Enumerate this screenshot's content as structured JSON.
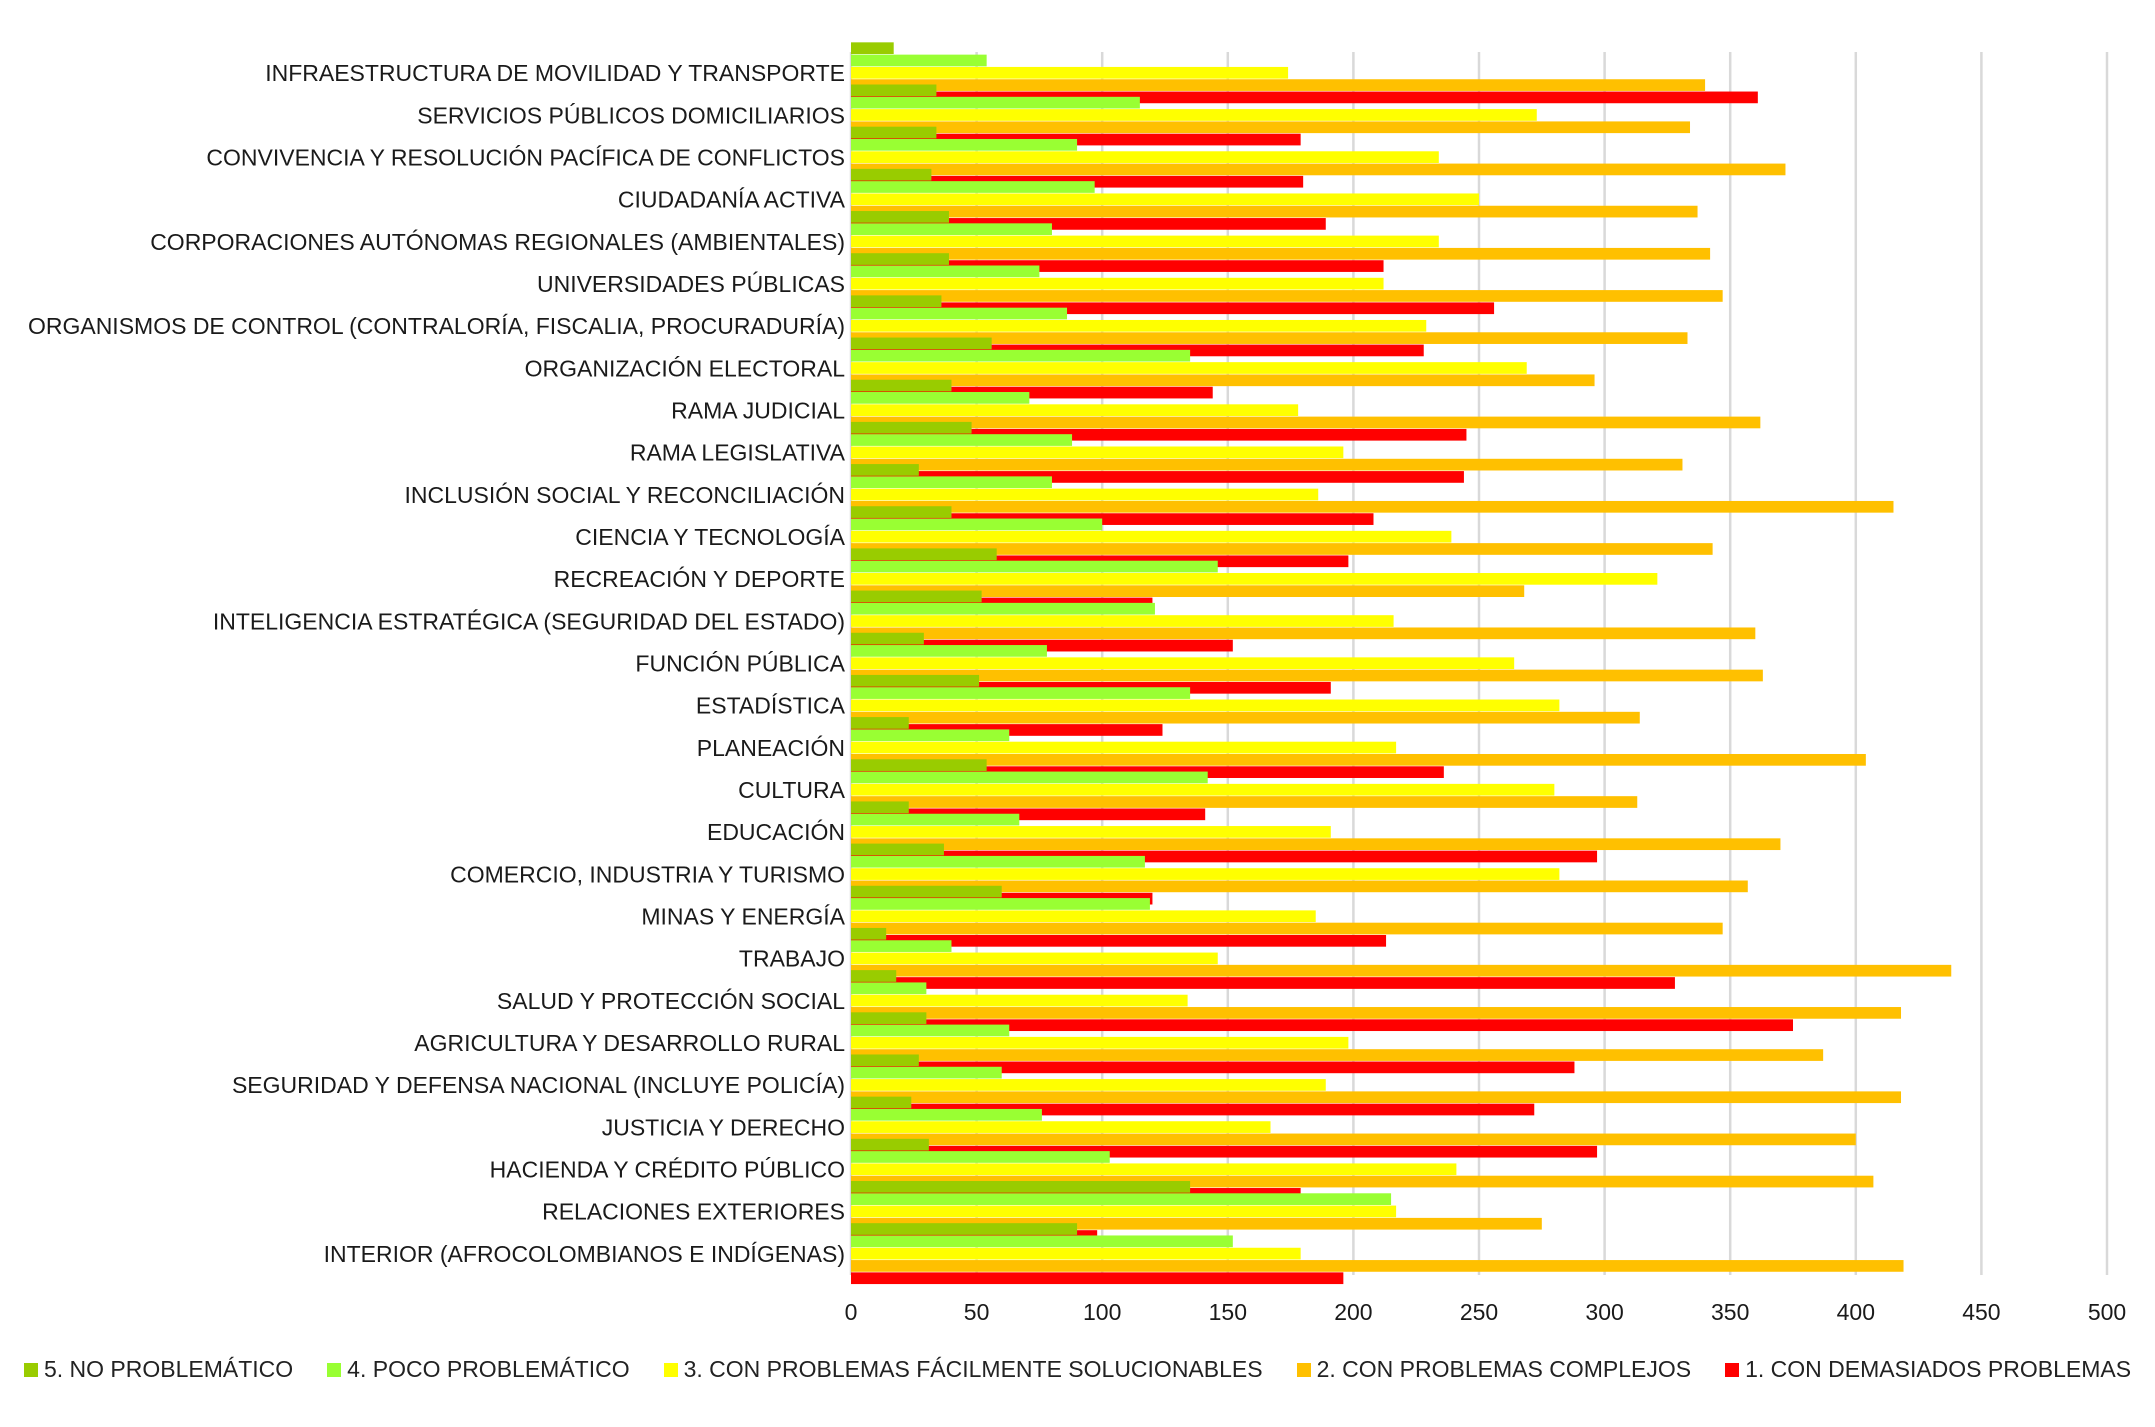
{
  "chart_data": {
    "type": "bar",
    "orientation": "horizontal",
    "title": "",
    "xlabel": "",
    "ylabel": "",
    "xlim": [
      0,
      500
    ],
    "x_ticks": [
      0,
      50,
      100,
      150,
      200,
      250,
      300,
      350,
      400,
      450,
      500
    ],
    "grid": true,
    "legend_position": "bottom",
    "categories": [
      "INFRAESTRUCTURA DE MOVILIDAD Y TRANSPORTE",
      "SERVICIOS PÚBLICOS DOMICILIARIOS",
      "CONVIVENCIA Y RESOLUCIÓN PACÍFICA DE CONFLICTOS",
      "CIUDADANÍA ACTIVA",
      "CORPORACIONES AUTÓNOMAS REGIONALES (AMBIENTALES)",
      "UNIVERSIDADES PÚBLICAS",
      "ORGANISMOS DE CONTROL (CONTRALORÍA, FISCALIA, PROCURADURÍA)",
      "ORGANIZACIÓN ELECTORAL",
      "RAMA JUDICIAL",
      "RAMA LEGISLATIVA",
      "INCLUSIÓN SOCIAL Y RECONCILIACIÓN",
      "CIENCIA Y TECNOLOGÍA",
      "RECREACIÓN Y DEPORTE",
      "INTELIGENCIA ESTRATÉGICA (SEGURIDAD DEL ESTADO)",
      "FUNCIÓN PÚBLICA",
      "ESTADÍSTICA",
      "PLANEACIÓN",
      "CULTURA",
      "EDUCACIÓN",
      "COMERCIO, INDUSTRIA Y TURISMO",
      "MINAS Y ENERGÍA",
      "TRABAJO",
      "SALUD Y PROTECCIÓN SOCIAL",
      "AGRICULTURA Y DESARROLLO RURAL",
      "SEGURIDAD Y DEFENSA NACIONAL (INCLUYE POLICÍA)",
      "JUSTICIA Y DERECHO",
      "HACIENDA Y CRÉDITO PÚBLICO",
      "RELACIONES EXTERIORES",
      "INTERIOR (AFROCOLOMBIANOS E INDÍGENAS)"
    ],
    "series": [
      {
        "name": "5. NO PROBLEMÁTICO",
        "color": "#99CC00",
        "values": [
          17,
          34,
          34,
          32,
          39,
          39,
          36,
          56,
          40,
          48,
          27,
          40,
          58,
          52,
          29,
          51,
          23,
          54,
          23,
          37,
          60,
          14,
          18,
          30,
          27,
          24,
          31,
          135,
          90
        ]
      },
      {
        "name": "4. POCO PROBLEMÁTICO",
        "color": "#99FF33",
        "values": [
          54,
          115,
          90,
          97,
          80,
          75,
          86,
          135,
          71,
          88,
          80,
          100,
          146,
          121,
          78,
          135,
          63,
          142,
          67,
          117,
          119,
          40,
          30,
          63,
          60,
          76,
          103,
          215,
          152
        ]
      },
      {
        "name": "3. CON PROBLEMAS FÁCILMENTE SOLUCIONABLES",
        "color": "#FFFF00",
        "values": [
          174,
          273,
          234,
          250,
          234,
          212,
          229,
          269,
          178,
          196,
          186,
          239,
          321,
          216,
          264,
          282,
          217,
          280,
          191,
          282,
          185,
          146,
          134,
          198,
          189,
          167,
          241,
          217,
          179
        ]
      },
      {
        "name": "2. CON PROBLEMAS COMPLEJOS",
        "color": "#FFC000",
        "values": [
          340,
          334,
          372,
          337,
          342,
          347,
          333,
          296,
          362,
          331,
          415,
          343,
          268,
          360,
          363,
          314,
          404,
          313,
          370,
          357,
          347,
          438,
          418,
          387,
          418,
          400,
          407,
          275,
          419
        ]
      },
      {
        "name": "1. CON DEMASIADOS PROBLEMAS",
        "color": "#FF0000",
        "values": [
          361,
          179,
          180,
          189,
          212,
          256,
          228,
          144,
          245,
          244,
          208,
          198,
          120,
          152,
          191,
          124,
          236,
          141,
          297,
          120,
          213,
          328,
          375,
          288,
          272,
          297,
          179,
          98,
          196
        ]
      }
    ]
  }
}
